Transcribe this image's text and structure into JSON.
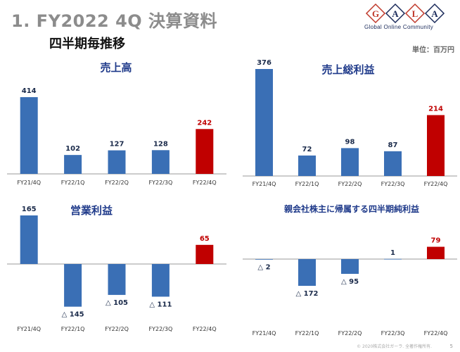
{
  "header": {
    "title": "1. FY2022 4Q 決算資料",
    "subtitle": "四半期毎推移",
    "unit": "単位：百万円"
  },
  "logo": {
    "letters": [
      "G",
      "A",
      "L",
      "A"
    ],
    "tagline": "Global Online Community",
    "colors": [
      "#c0392b",
      "#1a2a5a"
    ]
  },
  "footer": {
    "copyright": "© 2020株式会社ガーラ. 全著作権所有.",
    "page": "5"
  },
  "colors": {
    "normal": "#3a6fb5",
    "highlight": "#c00000"
  },
  "chart_data": [
    {
      "type": "bar",
      "title": "売上高",
      "categories": [
        "FY21/4Q",
        "FY22/1Q",
        "FY22/2Q",
        "FY22/3Q",
        "FY22/4Q"
      ],
      "values": [
        414,
        102,
        127,
        128,
        242
      ],
      "labels": [
        "414",
        "102",
        "127",
        "128",
        "242"
      ],
      "highlight_index": 4
    },
    {
      "type": "bar",
      "title": "売上総利益",
      "categories": [
        "FY21/4Q",
        "FY22/1Q",
        "FY22/2Q",
        "FY22/3Q",
        "FY22/4Q"
      ],
      "values": [
        376,
        72,
        98,
        87,
        214
      ],
      "labels": [
        "376",
        "72",
        "98",
        "87",
        "214"
      ],
      "highlight_index": 4
    },
    {
      "type": "bar",
      "title": "営業利益",
      "categories": [
        "FY21/4Q",
        "FY22/1Q",
        "FY22/2Q",
        "FY22/3Q",
        "FY22/4Q"
      ],
      "values": [
        165,
        -145,
        -105,
        -111,
        65
      ],
      "labels": [
        "165",
        "△ 145",
        "△ 105",
        "△ 111",
        "65"
      ],
      "highlight_index": 4
    },
    {
      "type": "bar",
      "title": "親会社株主に帰属する四半期純利益",
      "categories": [
        "FY21/4Q",
        "FY22/1Q",
        "FY22/2Q",
        "FY22/3Q",
        "FY22/4Q"
      ],
      "values": [
        -2,
        -172,
        -95,
        1,
        79
      ],
      "labels": [
        "△ 2",
        "△ 172",
        "△ 95",
        "1",
        "79"
      ],
      "highlight_index": 4
    }
  ]
}
